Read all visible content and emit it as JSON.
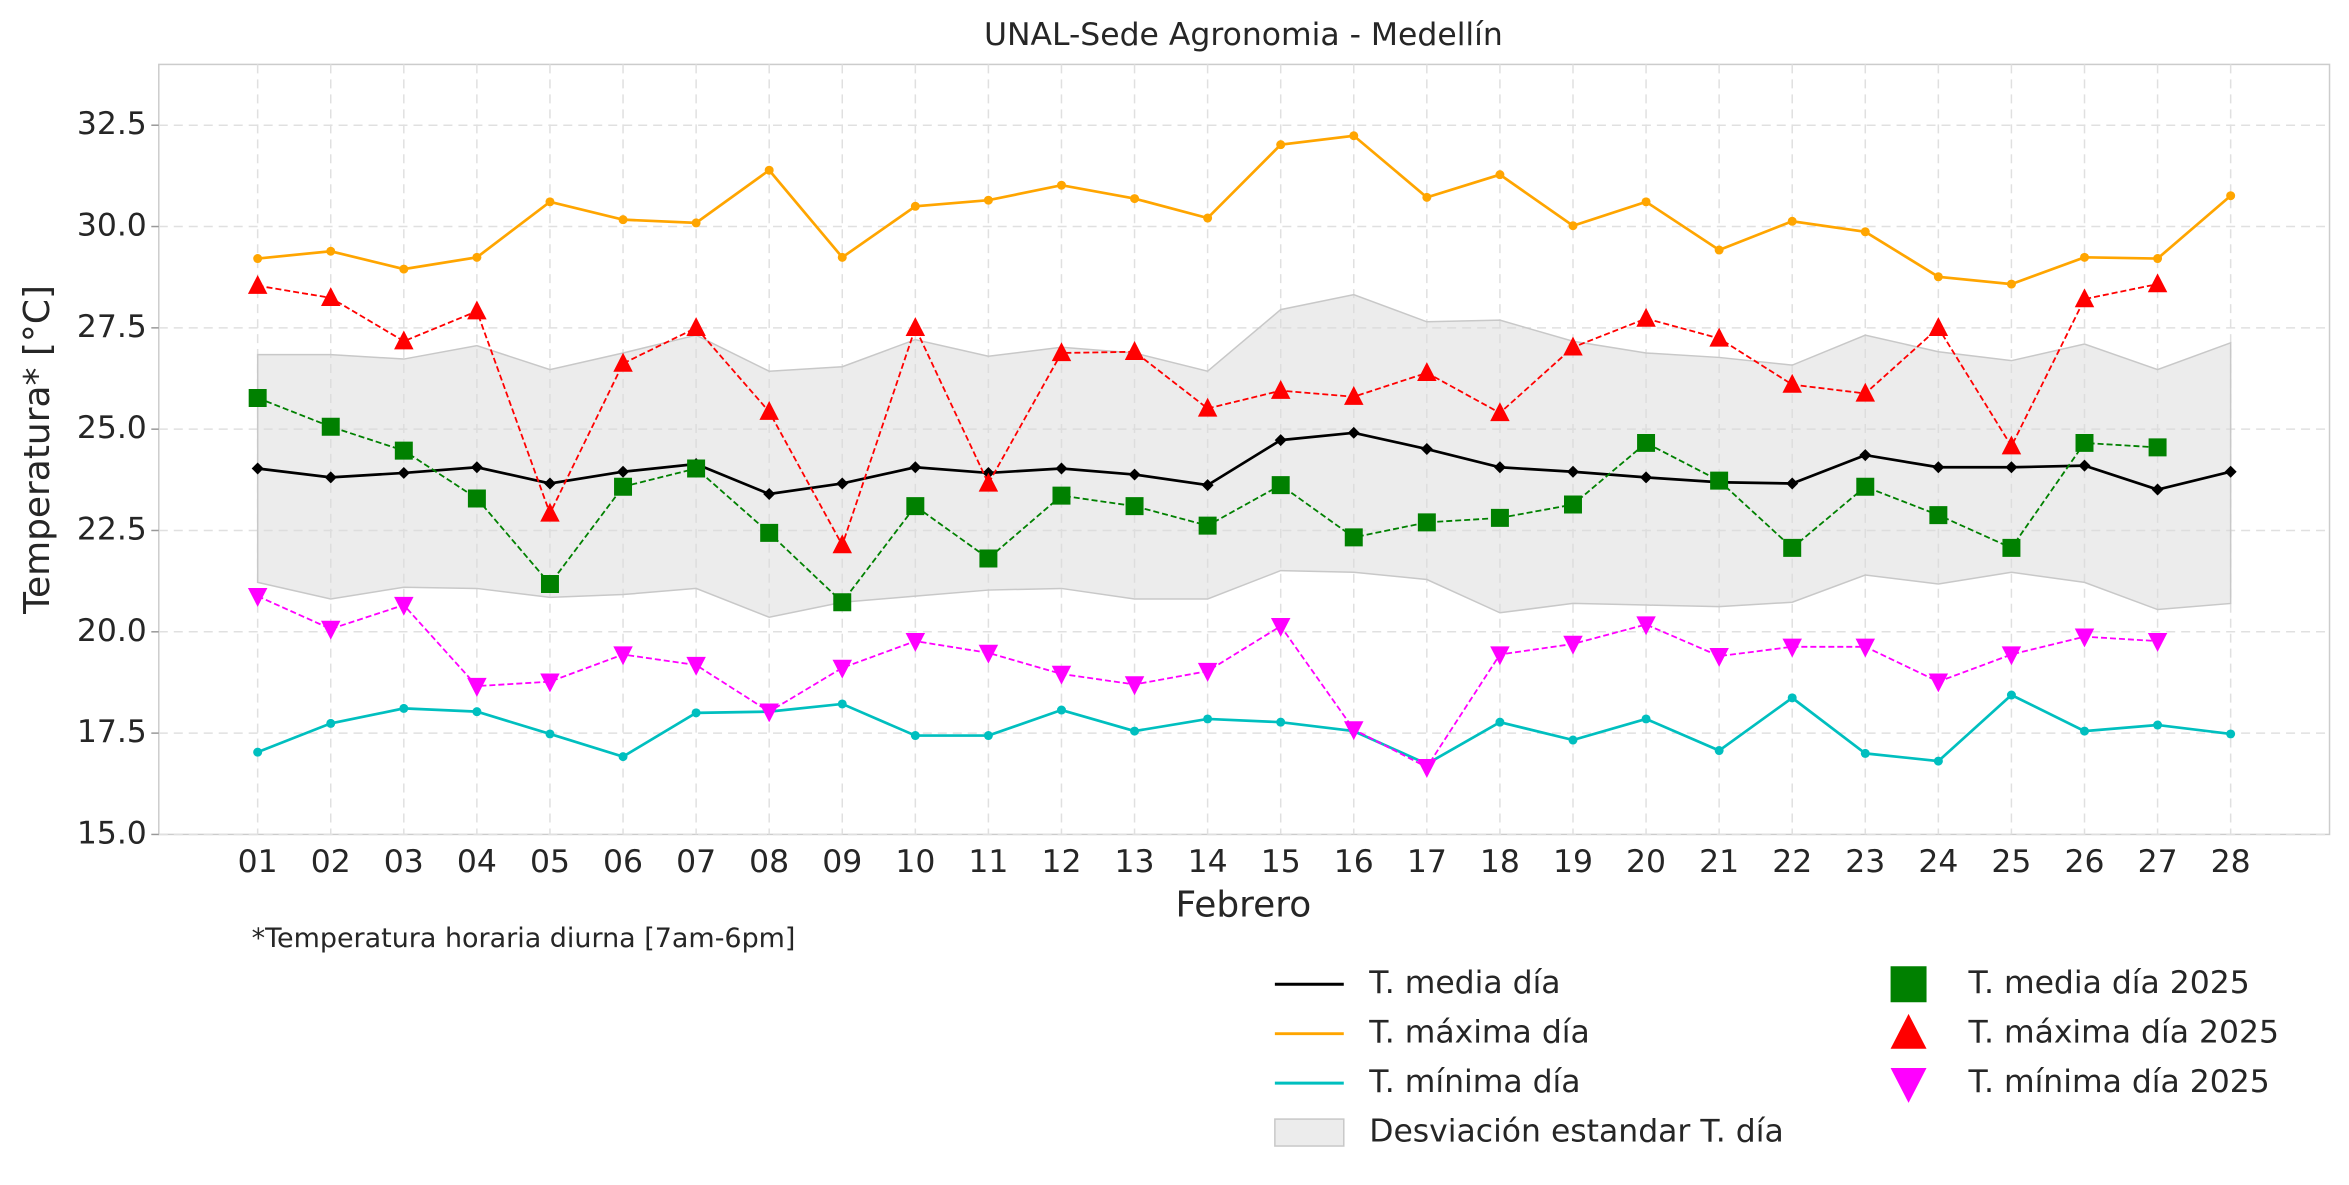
{
  "chart_data": {
    "type": "line",
    "title": "UNAL-Sede Agronomia - Medellín",
    "x_label": "Febrero",
    "y_label": "Temperatura* [°C]",
    "footnote": "*Temperatura horaria diurna [7am-6pm]",
    "categories": [
      "01",
      "02",
      "03",
      "04",
      "05",
      "06",
      "07",
      "08",
      "09",
      "10",
      "11",
      "12",
      "13",
      "14",
      "15",
      "16",
      "17",
      "18",
      "19",
      "20",
      "21",
      "22",
      "23",
      "24",
      "25",
      "26",
      "27",
      "28"
    ],
    "ylim": [
      15,
      34
    ],
    "yticks": [
      {
        "value": 15,
        "label": "15.0"
      },
      {
        "value": 17.5,
        "label": "17.5"
      },
      {
        "value": 20,
        "label": "20.0"
      },
      {
        "value": 22.5,
        "label": "22.5"
      },
      {
        "value": 25,
        "label": "25.0"
      },
      {
        "value": 27.5,
        "label": "27.5"
      },
      {
        "value": 30,
        "label": "30.0"
      },
      {
        "value": 32.5,
        "label": "32.5"
      }
    ],
    "grid": true,
    "band": {
      "name": "Desviación estandar T. día",
      "color": "#d9d9d9",
      "upper": [
        26.84,
        26.84,
        26.73,
        27.06,
        26.47,
        26.88,
        27.32,
        26.43,
        26.54,
        27.21,
        26.8,
        27.02,
        26.88,
        26.43,
        27.95,
        28.32,
        27.65,
        27.69,
        27.17,
        26.88,
        26.77,
        26.58,
        27.32,
        26.91,
        26.69,
        27.1,
        26.47,
        27.13
      ],
      "lower": [
        21.22,
        20.81,
        21.1,
        21.07,
        20.85,
        20.92,
        21.07,
        20.36,
        20.73,
        20.88,
        21.03,
        21.07,
        20.81,
        20.81,
        21.51,
        21.47,
        21.29,
        20.47,
        20.7,
        20.66,
        20.62,
        20.73,
        21.4,
        21.18,
        21.47,
        21.22,
        20.55,
        20.7
      ]
    },
    "series": [
      {
        "name": "T. media día",
        "color": "#000000",
        "style": "solid",
        "marker": "diamond",
        "values": [
          24.03,
          23.81,
          23.92,
          24.06,
          23.66,
          23.95,
          24.14,
          23.4,
          23.66,
          24.06,
          23.92,
          24.03,
          23.88,
          23.62,
          24.73,
          24.91,
          24.51,
          24.06,
          23.95,
          23.81,
          23.69,
          23.66,
          24.36,
          24.06,
          24.06,
          24.1,
          23.51,
          23.95
        ]
      },
      {
        "name": "T. máxima día",
        "color": "#ffa500",
        "style": "solid",
        "marker": "circle",
        "values": [
          29.21,
          29.39,
          28.95,
          29.24,
          30.61,
          30.17,
          30.09,
          31.39,
          29.24,
          30.5,
          30.65,
          31.02,
          30.69,
          30.21,
          32.02,
          32.24,
          30.72,
          31.28,
          30.02,
          30.61,
          29.42,
          30.13,
          29.87,
          28.76,
          28.58,
          29.24,
          29.21,
          30.76
        ]
      },
      {
        "name": "T. mínima día",
        "color": "#00bfbf",
        "style": "solid",
        "marker": "circle",
        "values": [
          17.03,
          17.74,
          18.11,
          18.03,
          17.48,
          16.92,
          18.0,
          18.03,
          18.22,
          17.44,
          17.44,
          18.07,
          17.55,
          17.85,
          17.77,
          17.55,
          16.74,
          17.77,
          17.33,
          17.85,
          17.07,
          18.37,
          17.0,
          16.81,
          18.44,
          17.55,
          17.7,
          17.48
        ]
      },
      {
        "name": "T. media día 2025",
        "color": "#008000",
        "style": "dashed",
        "marker": "square",
        "values": [
          25.77,
          25.06,
          24.47,
          23.29,
          21.18,
          23.58,
          24.03,
          22.44,
          20.73,
          23.1,
          21.81,
          23.36,
          23.1,
          22.62,
          23.62,
          22.33,
          22.7,
          22.81,
          23.14,
          24.66,
          23.73,
          22.07,
          23.58,
          22.88,
          22.07,
          24.66,
          24.55,
          null
        ]
      },
      {
        "name": "T. máxima día 2025",
        "color": "#ff0000",
        "style": "dashed",
        "marker": "triangle-up",
        "values": [
          28.54,
          28.24,
          27.17,
          27.91,
          22.92,
          26.62,
          27.5,
          25.43,
          22.14,
          27.5,
          23.66,
          26.88,
          26.91,
          25.51,
          25.95,
          25.8,
          26.39,
          25.4,
          27.02,
          27.73,
          27.24,
          26.1,
          25.88,
          27.5,
          24.58,
          28.21,
          28.58,
          null
        ]
      },
      {
        "name": "T. mínima día 2025",
        "color": "#ff00ff",
        "style": "dashed",
        "marker": "triangle-down",
        "values": [
          20.88,
          20.07,
          20.66,
          18.66,
          18.77,
          19.44,
          19.18,
          18.03,
          19.11,
          19.77,
          19.48,
          18.96,
          18.7,
          19.03,
          20.14,
          17.59,
          16.66,
          19.44,
          19.7,
          20.18,
          19.4,
          19.63,
          19.63,
          18.77,
          19.44,
          19.88,
          19.77,
          null
        ]
      }
    ]
  }
}
